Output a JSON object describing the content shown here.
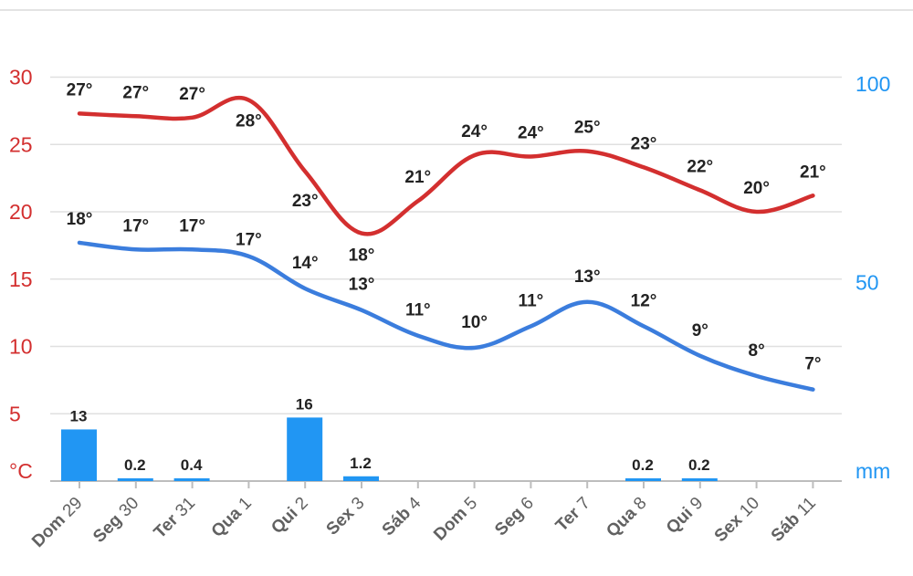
{
  "chart_data": {
    "type": "line",
    "title": "",
    "categories": [
      {
        "day": "Dom",
        "num": "29"
      },
      {
        "day": "Seg",
        "num": "30"
      },
      {
        "day": "Ter",
        "num": "31"
      },
      {
        "day": "Qua",
        "num": "1"
      },
      {
        "day": "Qui",
        "num": "2"
      },
      {
        "day": "Sex",
        "num": "3"
      },
      {
        "day": "Sáb",
        "num": "4"
      },
      {
        "day": "Dom",
        "num": "5"
      },
      {
        "day": "Seg",
        "num": "6"
      },
      {
        "day": "Ter",
        "num": "7"
      },
      {
        "day": "Qua",
        "num": "8"
      },
      {
        "day": "Qui",
        "num": "9"
      },
      {
        "day": "Sex",
        "num": "10"
      },
      {
        "day": "Sáb",
        "num": "11"
      }
    ],
    "series": [
      {
        "name": "max",
        "axis": "left",
        "color": "#d32f2f",
        "values": [
          27.3,
          27.1,
          27.0,
          28.3,
          23.0,
          18.4,
          20.8,
          24.2,
          24.1,
          24.5,
          23.3,
          21.6,
          20.0,
          21.2
        ],
        "labels": [
          "27°",
          "27°",
          "27°",
          "28°",
          "23°",
          "18°",
          "21°",
          "24°",
          "24°",
          "25°",
          "23°",
          "22°",
          "20°",
          "21°"
        ]
      },
      {
        "name": "min",
        "axis": "left",
        "color": "#3b7ddd",
        "values": [
          17.7,
          17.2,
          17.2,
          16.7,
          14.3,
          12.7,
          10.8,
          9.9,
          11.5,
          13.3,
          11.5,
          9.3,
          7.8,
          6.8
        ],
        "labels": [
          "18°",
          "17°",
          "17°",
          "17°",
          "14°",
          "13°",
          "11°",
          "10°",
          "11°",
          "13°",
          "12°",
          "9°",
          "8°",
          "7°"
        ]
      },
      {
        "name": "precipitation",
        "type": "bar",
        "axis": "right",
        "color": "#2196f3",
        "values": [
          13,
          0.2,
          0.4,
          0,
          16,
          1.2,
          0,
          0,
          0,
          0,
          0.2,
          0.2,
          0,
          0
        ],
        "labels": [
          "13",
          "0.2",
          "0.4",
          "",
          "16",
          "1.2",
          "",
          "",
          "",
          "",
          "0.2",
          "0.2",
          "",
          ""
        ]
      }
    ],
    "y_left": {
      "label": "°C",
      "ticks": [
        "30",
        "25",
        "20",
        "15",
        "10",
        "5"
      ],
      "range": [
        0,
        30
      ],
      "color": "#d32f2f"
    },
    "y_right": {
      "label": "mm",
      "ticks": [
        "100",
        "50"
      ],
      "range": [
        0,
        100
      ],
      "color": "#2196f3"
    },
    "grid": true
  }
}
